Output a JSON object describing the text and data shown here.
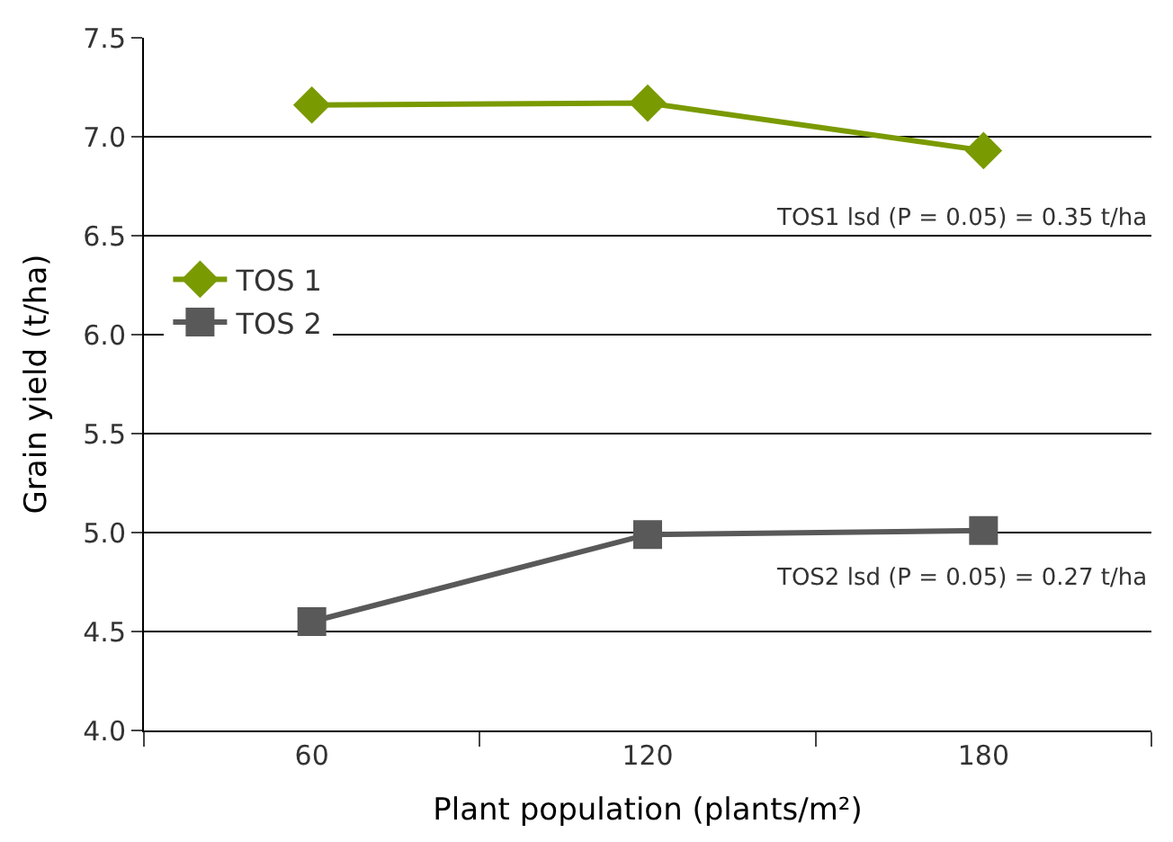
{
  "chart_data": {
    "type": "line",
    "xlabel": "Plant population (plants/m²)",
    "ylabel": "Grain yield (t/ha)",
    "categories": [
      "60",
      "120",
      "180"
    ],
    "series": [
      {
        "name": "TOS 1",
        "color": "#7a9a01",
        "marker": "diamond",
        "values": [
          7.16,
          7.17,
          6.93
        ]
      },
      {
        "name": "TOS 2",
        "color": "#595959",
        "marker": "square",
        "values": [
          4.55,
          4.99,
          5.01
        ]
      }
    ],
    "ylim": [
      4.0,
      7.5
    ],
    "yticks": [
      {
        "value": 4.0,
        "label": "4.0"
      },
      {
        "value": 4.5,
        "label": "4.5"
      },
      {
        "value": 5.0,
        "label": "5.0"
      },
      {
        "value": 5.5,
        "label": "5.5"
      },
      {
        "value": 6.0,
        "label": "6.0"
      },
      {
        "value": 6.5,
        "label": "6.5"
      },
      {
        "value": 7.0,
        "label": "7.0"
      },
      {
        "value": 7.5,
        "label": "7.5"
      }
    ],
    "grid": "y",
    "legend": "left",
    "annotations": [
      "TOS1 lsd (P = 0.05) = 0.35 t/ha",
      "TOS2 lsd (P = 0.05) = 0.27 t/ha"
    ]
  }
}
